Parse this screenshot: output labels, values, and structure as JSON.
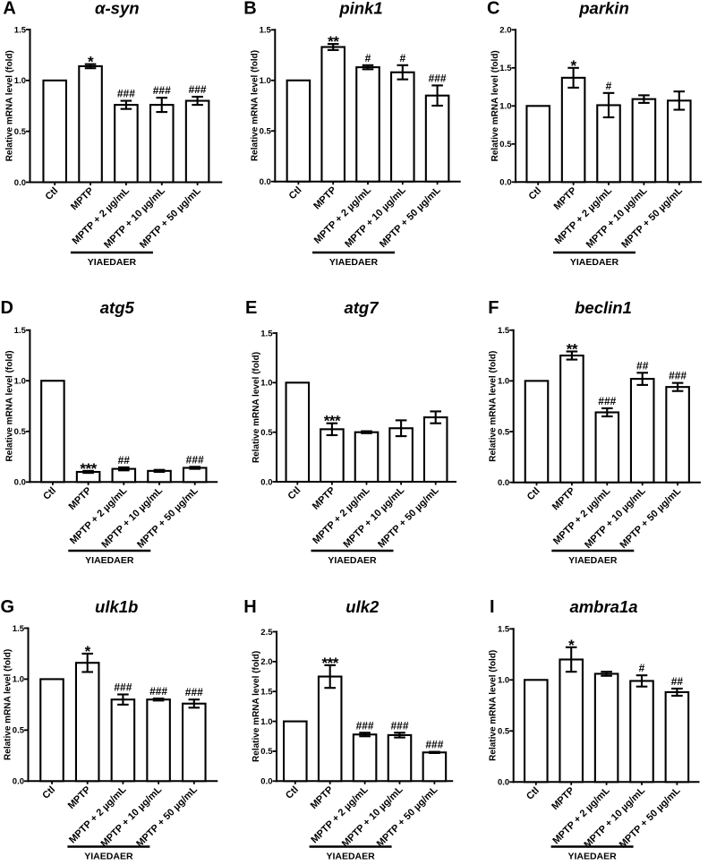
{
  "figure": {
    "background": "#ffffff",
    "ink_color": "#000000",
    "bar_fill": "#ffffff",
    "layout": "3x3 grid of bar charts labeled A-I"
  },
  "chart_data": [
    {
      "panel_letter": "A",
      "type": "bar",
      "title": "α-syn",
      "ylabel": "Relative mRNA level (fold)",
      "categories": [
        "Ctl",
        "MPTP",
        "MPTP + 2 µg/mL",
        "MPTP + 10 µg/mL",
        "MPTP + 50 µg/mL"
      ],
      "values": [
        1.0,
        1.14,
        0.76,
        0.76,
        0.8
      ],
      "errors": [
        0,
        0.02,
        0.04,
        0.07,
        0.04
      ],
      "significance": [
        "",
        "*",
        "###",
        "###",
        "###"
      ],
      "ylim": [
        0,
        1.5
      ],
      "yticks": [
        0,
        0.5,
        1.0,
        1.5
      ],
      "group_label": "YIAEDAER",
      "group_span": [
        2,
        4
      ],
      "grid": false
    },
    {
      "panel_letter": "B",
      "type": "bar",
      "title": "pink1",
      "ylabel": "Relative mRNA level (fold)",
      "categories": [
        "Ctl",
        "MPTP",
        "MPTP + 2 µg/mL",
        "MPTP + 10 µg/mL",
        "MPTP + 50 µg/mL"
      ],
      "values": [
        1.0,
        1.33,
        1.13,
        1.08,
        0.85
      ],
      "errors": [
        0,
        0.03,
        0.02,
        0.07,
        0.1
      ],
      "significance": [
        "",
        "**",
        "#",
        "#",
        "###"
      ],
      "ylim": [
        0,
        1.5
      ],
      "yticks": [
        0,
        0.5,
        1.0,
        1.5
      ],
      "group_label": "YIAEDAER",
      "group_span": [
        2,
        4
      ],
      "grid": false
    },
    {
      "panel_letter": "C",
      "type": "bar",
      "title": "parkin",
      "ylabel": "Relative mRNA level (fold)",
      "categories": [
        "Ctl",
        "MPTP",
        "MPTP + 2 µg/mL",
        "MPTP + 10 µg/mL",
        "MPTP + 50 µg/mL"
      ],
      "values": [
        1.0,
        1.37,
        1.01,
        1.09,
        1.07
      ],
      "errors": [
        0,
        0.13,
        0.16,
        0.05,
        0.12
      ],
      "significance": [
        "",
        "*",
        "#",
        "",
        ""
      ],
      "ylim": [
        0,
        2.0
      ],
      "yticks": [
        0,
        0.5,
        1.0,
        1.5,
        2.0
      ],
      "group_label": "YIAEDAER",
      "group_span": [
        2,
        4
      ],
      "grid": false
    },
    {
      "panel_letter": "D",
      "type": "bar",
      "title": "atg5",
      "ylabel": "Relative mRNA level (fold)",
      "categories": [
        "Ctl",
        "MPTP",
        "MPTP + 2 µg/mL",
        "MPTP + 10 µg/mL",
        "MPTP + 50 µg/mL"
      ],
      "values": [
        1.0,
        0.1,
        0.13,
        0.11,
        0.14
      ],
      "errors": [
        0,
        0.01,
        0.015,
        0.01,
        0.01
      ],
      "significance": [
        "",
        "***",
        "##",
        "",
        "###"
      ],
      "ylim": [
        0,
        1.5
      ],
      "yticks": [
        0,
        0.5,
        1.0,
        1.5
      ],
      "group_label": "YIAEDAER",
      "group_span": [
        2,
        4
      ],
      "grid": false
    },
    {
      "panel_letter": "E",
      "type": "bar",
      "title": "atg7",
      "ylabel": "Relative mRNA level (fold)",
      "categories": [
        "Ctl",
        "MPTP",
        "MPTP + 2 µg/mL",
        "MPTP + 10 µg/mL",
        "MPTP + 50 µg/mL"
      ],
      "values": [
        1.0,
        0.53,
        0.5,
        0.54,
        0.65
      ],
      "errors": [
        0,
        0.06,
        0.01,
        0.08,
        0.06
      ],
      "significance": [
        "",
        "***",
        "",
        "",
        ""
      ],
      "ylim": [
        0,
        1.5
      ],
      "yticks": [
        0,
        0.5,
        1.0,
        1.5
      ],
      "group_label": "YIAEDAER",
      "group_span": [
        2,
        4
      ],
      "grid": false
    },
    {
      "panel_letter": "F",
      "type": "bar",
      "title": "beclin1",
      "ylabel": "Relative mRNA level (fold)",
      "categories": [
        "Ctl",
        "MPTP",
        "MPTP + 2 µg/mL",
        "MPTP + 10 µg/mL",
        "MPTP + 50 µg/mL"
      ],
      "values": [
        1.0,
        1.25,
        0.69,
        1.02,
        0.94
      ],
      "errors": [
        0,
        0.04,
        0.04,
        0.06,
        0.04
      ],
      "significance": [
        "",
        "**",
        "###",
        "##",
        "###"
      ],
      "ylim": [
        0,
        1.5
      ],
      "yticks": [
        0,
        0.5,
        1.0,
        1.5
      ],
      "group_label": "YIAEDAER",
      "group_span": [
        2,
        4
      ],
      "grid": false
    },
    {
      "panel_letter": "G",
      "type": "bar",
      "title": "ulk1b",
      "ylabel": "Relative mRNA level (fold)",
      "categories": [
        "Ctl",
        "MPTP",
        "MPTP + 2 µg/mL",
        "MPTP + 10 µg/mL",
        "MPTP + 50 µg/mL"
      ],
      "values": [
        1.0,
        1.16,
        0.8,
        0.8,
        0.76
      ],
      "errors": [
        0,
        0.09,
        0.05,
        0.01,
        0.04
      ],
      "significance": [
        "",
        "*",
        "###",
        "###",
        "###"
      ],
      "ylim": [
        0,
        1.5
      ],
      "yticks": [
        0,
        0.5,
        1.0,
        1.5
      ],
      "group_label": "YIAEDAER",
      "group_span": [
        2,
        4
      ],
      "grid": false
    },
    {
      "panel_letter": "H",
      "type": "bar",
      "title": "ulk2",
      "ylabel": "Relative mRNA level (fold)",
      "categories": [
        "Ctl",
        "MPTP",
        "MPTP + 2 µg/mL",
        "MPTP + 10 µg/mL",
        "MPTP + 50 µg/mL"
      ],
      "values": [
        1.0,
        1.75,
        0.78,
        0.77,
        0.48
      ],
      "errors": [
        0,
        0.19,
        0.03,
        0.04,
        0.01
      ],
      "significance": [
        "",
        "***",
        "###",
        "###",
        "###"
      ],
      "ylim": [
        0,
        2.5
      ],
      "yticks": [
        0,
        0.5,
        1.0,
        1.5,
        2.0,
        2.5
      ],
      "group_label": "YIAEDAER",
      "group_span": [
        2,
        4
      ],
      "grid": false
    },
    {
      "panel_letter": "I",
      "type": "bar",
      "title": "ambra1a",
      "ylabel": "Relative mRNA level (fold)",
      "categories": [
        "Ctl",
        "MPTP",
        "MPTP + 2 µg/mL",
        "MPTP + 10 µg/mL",
        "MPTP + 50 µg/mL"
      ],
      "values": [
        1.0,
        1.2,
        1.06,
        0.99,
        0.88
      ],
      "errors": [
        0,
        0.12,
        0.02,
        0.055,
        0.035
      ],
      "significance": [
        "",
        "*",
        "",
        "#",
        "##"
      ],
      "ylim": [
        0,
        1.5
      ],
      "yticks": [
        0,
        0.5,
        1.0,
        1.5
      ],
      "group_label": "YIAEDAER",
      "group_span": [
        2,
        4
      ],
      "grid": false
    }
  ]
}
